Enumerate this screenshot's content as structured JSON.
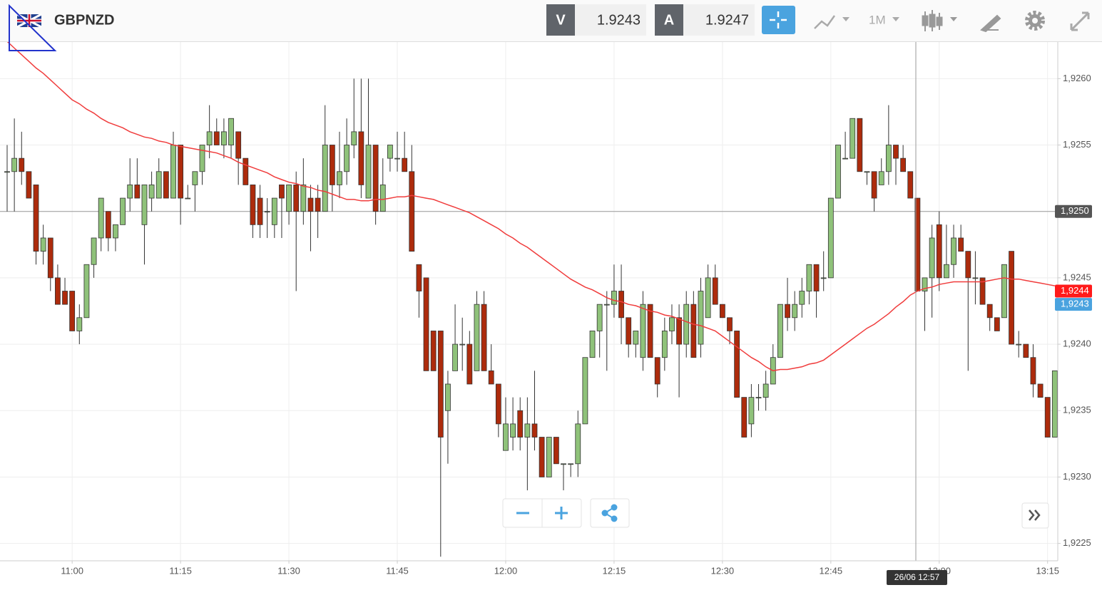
{
  "toolbar": {
    "bid_label": "V",
    "bid": 1.9243,
    "ask_label": "A",
    "ask": 1.9247,
    "interval": "1M"
  },
  "chart_data": {
    "type": "candlestick",
    "title": "GBPNZD",
    "categories": [
      null,
      null,
      null,
      null,
      null,
      null,
      null,
      null,
      null,
      "11:00",
      null,
      null,
      null,
      null,
      null,
      null,
      null,
      null,
      null,
      null,
      null,
      null,
      null,
      null,
      "11:15",
      null,
      null,
      null,
      null,
      null,
      null,
      null,
      null,
      null,
      null,
      null,
      null,
      null,
      null,
      "11:30",
      null,
      null,
      null,
      null,
      null,
      null,
      null,
      null,
      null,
      null,
      null,
      null,
      null,
      null,
      "11:45",
      null,
      null,
      null,
      null,
      null,
      null,
      null,
      null,
      null,
      null,
      null,
      null,
      null,
      null,
      "12:00",
      null,
      null,
      null,
      null,
      null,
      null,
      null,
      null,
      null,
      null,
      null,
      null,
      null,
      null,
      "12:15",
      null,
      null,
      null,
      null,
      null,
      null,
      null,
      null,
      null,
      null,
      null,
      null,
      null,
      null,
      "12:30",
      null,
      null,
      null,
      null,
      null,
      null,
      null,
      null,
      null,
      null,
      null,
      null,
      null,
      null,
      "12:45",
      null,
      null,
      null,
      null,
      null,
      null,
      null,
      null,
      null,
      null,
      null,
      null,
      null,
      null,
      "13:00",
      null,
      null,
      null,
      null,
      null,
      null,
      null,
      null,
      null,
      null,
      null,
      null,
      null,
      null,
      "13:15",
      null
    ],
    "open": [
      1.9253,
      1.9253,
      1.9254,
      1.9253,
      1.9252,
      1.9247,
      1.9248,
      1.9245,
      1.9244,
      1.9244,
      1.9241,
      1.9242,
      1.9246,
      1.9248,
      1.925,
      1.9248,
      1.9249,
      1.9251,
      1.9252,
      1.9249,
      1.9251,
      1.9251,
      1.9253,
      1.9251,
      1.9255,
      1.9251,
      1.9252,
      1.9253,
      1.9255,
      1.9256,
      1.9255,
      1.9255,
      1.9256,
      1.9254,
      1.9252,
      1.9251,
      1.925,
      1.9249,
      1.9252,
      1.925,
      1.9252,
      1.925,
      1.9251,
      1.9251,
      1.925,
      1.9255,
      1.9252,
      1.9253,
      1.9255,
      1.9256,
      1.9251,
      1.9255,
      1.925,
      1.9254,
      1.9254,
      1.9254,
      1.9253,
      1.9246,
      1.9245,
      1.9241,
      1.9241,
      1.9235,
      1.9238,
      1.924,
      1.924,
      1.9238,
      1.9243,
      1.9238,
      1.9237,
      1.9232,
      1.9233,
      1.9235,
      1.9233,
      1.9234,
      1.9233,
      1.923,
      1.9233,
      1.9231,
      1.9231,
      1.9231,
      1.9234,
      1.9239,
      1.9241,
      1.9243,
      1.9243,
      1.9244,
      1.9242,
      1.924,
      1.9239,
      1.9243,
      1.9239,
      1.9239,
      1.9241,
      1.9242,
      1.924,
      1.9243,
      1.924,
      1.9242,
      1.9245,
      1.9243,
      1.9242,
      1.9241,
      1.9236,
      1.9234,
      1.9236,
      1.9236,
      1.9237,
      1.9239,
      1.9243,
      1.9242,
      1.9243,
      1.9244,
      1.9246,
      1.9245,
      1.9245,
      1.9251,
      1.9254,
      1.9254,
      1.9257,
      1.9253,
      1.9253,
      1.9252,
      1.9253,
      1.9255,
      1.9254,
      1.9253,
      1.9251,
      1.9244,
      1.9245,
      1.9249,
      1.9245,
      1.9246,
      1.9248,
      1.9247,
      1.9245,
      1.9245,
      1.9243,
      1.9242,
      1.9242,
      1.9247,
      1.924,
      1.924,
      1.9239,
      1.9237,
      1.9236,
      1.9233
    ],
    "high": [
      1.9255,
      1.9257,
      1.9256,
      1.9253,
      1.9252,
      1.9249,
      1.9248,
      1.9246,
      1.9245,
      1.9244,
      1.9243,
      1.9246,
      1.9248,
      1.9251,
      1.925,
      1.9249,
      1.9251,
      1.9254,
      1.9254,
      1.9252,
      1.9253,
      1.9254,
      1.9253,
      1.9256,
      1.9255,
      1.9252,
      1.9253,
      1.9255,
      1.9258,
      1.9257,
      1.9257,
      1.9257,
      1.9256,
      1.9254,
      1.9252,
      1.9252,
      1.9251,
      1.9251,
      1.9252,
      1.9252,
      1.9253,
      1.9254,
      1.9252,
      1.9252,
      1.9258,
      1.9255,
      1.9256,
      1.9257,
      1.926,
      1.926,
      1.926,
      1.9255,
      1.9254,
      1.9255,
      1.9256,
      1.9256,
      1.9255,
      1.9246,
      1.9245,
      1.9241,
      1.9241,
      1.9238,
      1.9243,
      1.9242,
      1.9241,
      1.9244,
      1.9244,
      1.924,
      1.9237,
      1.9236,
      1.9236,
      1.9236,
      1.9236,
      1.9238,
      1.9233,
      1.9233,
      1.9233,
      1.9231,
      1.9231,
      1.9235,
      1.9239,
      1.9241,
      1.9243,
      1.9244,
      1.9246,
      1.9246,
      1.9242,
      1.9241,
      1.9244,
      1.9243,
      1.9239,
      1.9242,
      1.9243,
      1.9243,
      1.9244,
      1.9244,
      1.9245,
      1.9246,
      1.9246,
      1.9243,
      1.9242,
      1.9241,
      1.9236,
      1.9237,
      1.9237,
      1.9238,
      1.924,
      1.9243,
      1.9245,
      1.9244,
      1.9245,
      1.9246,
      1.9246,
      1.9247,
      1.9251,
      1.9255,
      1.9256,
      1.9257,
      1.9257,
      1.9253,
      1.9253,
      1.9254,
      1.9258,
      1.9255,
      1.9255,
      1.9253,
      1.9251,
      1.9245,
      1.9249,
      1.925,
      1.9249,
      1.9249,
      1.9249,
      1.9247,
      1.9247,
      1.9245,
      1.9243,
      1.9242,
      1.9246,
      1.9247,
      1.9241,
      1.924,
      1.924,
      1.9237,
      1.9236,
      1.9238
    ],
    "low": [
      1.925,
      1.925,
      1.9252,
      1.9251,
      1.9246,
      1.9246,
      1.9244,
      1.9243,
      1.9243,
      1.9241,
      1.924,
      1.9242,
      1.9245,
      1.9247,
      1.9247,
      1.9247,
      1.9249,
      1.925,
      1.9251,
      1.9246,
      1.925,
      1.9251,
      1.9251,
      1.9251,
      1.9249,
      1.9251,
      1.925,
      1.9252,
      1.9254,
      1.9255,
      1.9254,
      1.9254,
      1.9252,
      1.9252,
      1.9248,
      1.9248,
      1.9248,
      1.9248,
      1.9248,
      1.9249,
      1.9244,
      1.9249,
      1.9247,
      1.9248,
      1.925,
      1.925,
      1.9251,
      1.9252,
      1.9254,
      1.9251,
      1.9251,
      1.9249,
      1.925,
      1.9253,
      1.9253,
      1.9253,
      1.9247,
      1.9242,
      1.9238,
      1.9238,
      1.9224,
      1.9231,
      1.9238,
      1.9238,
      1.9237,
      1.9238,
      1.9238,
      1.9237,
      1.9233,
      1.9232,
      1.9232,
      1.9232,
      1.9229,
      1.9232,
      1.923,
      1.923,
      1.9231,
      1.9229,
      1.923,
      1.923,
      1.9234,
      1.9239,
      1.9239,
      1.9238,
      1.9242,
      1.924,
      1.9239,
      1.9239,
      1.9238,
      1.9239,
      1.9236,
      1.9238,
      1.924,
      1.9236,
      1.9239,
      1.9239,
      1.9239,
      1.9242,
      1.9243,
      1.9242,
      1.924,
      1.9236,
      1.9233,
      1.9233,
      1.9235,
      1.9235,
      1.9237,
      1.9239,
      1.9241,
      1.9241,
      1.9242,
      1.9243,
      1.9242,
      1.9244,
      1.9245,
      1.9251,
      1.9254,
      1.9254,
      1.9253,
      1.9252,
      1.925,
      1.9252,
      1.9252,
      1.9252,
      1.9253,
      1.9251,
      1.9244,
      1.9241,
      1.9242,
      1.9244,
      1.9245,
      1.9245,
      1.9247,
      1.9238,
      1.9243,
      1.9243,
      1.9241,
      1.9241,
      1.9242,
      1.924,
      1.9239,
      1.9239,
      1.9236,
      1.9236,
      1.9233,
      1.9233
    ],
    "close": [
      1.9253,
      1.9254,
      1.9253,
      1.9251,
      1.9247,
      1.9248,
      1.9245,
      1.9243,
      1.9243,
      1.9241,
      1.9242,
      1.9246,
      1.9248,
      1.9251,
      1.9248,
      1.9249,
      1.9251,
      1.9252,
      1.9251,
      1.9252,
      1.9252,
      1.9253,
      1.9251,
      1.9255,
      1.9251,
      1.9251,
      1.9253,
      1.9255,
      1.9256,
      1.9255,
      1.9256,
      1.9257,
      1.9254,
      1.9252,
      1.9249,
      1.9249,
      1.925,
      1.9251,
      1.9251,
      1.9252,
      1.925,
      1.9252,
      1.925,
      1.925,
      1.9255,
      1.9252,
      1.9253,
      1.9255,
      1.9256,
      1.9252,
      1.9255,
      1.925,
      1.9252,
      1.9255,
      1.9254,
      1.9253,
      1.9247,
      1.9244,
      1.9238,
      1.9238,
      1.9233,
      1.9237,
      1.924,
      1.924,
      1.9237,
      1.9243,
      1.9238,
      1.9237,
      1.9234,
      1.9234,
      1.9234,
      1.9233,
      1.9234,
      1.9233,
      1.923,
      1.9233,
      1.9231,
      1.9231,
      1.9231,
      1.9234,
      1.9239,
      1.9241,
      1.9243,
      1.9243,
      1.9244,
      1.9242,
      1.924,
      1.9241,
      1.9243,
      1.9239,
      1.9237,
      1.9241,
      1.9242,
      1.924,
      1.9243,
      1.9239,
      1.9244,
      1.9245,
      1.9243,
      1.9242,
      1.9241,
      1.9236,
      1.9233,
      1.9236,
      1.9236,
      1.9237,
      1.9239,
      1.9243,
      1.9242,
      1.9243,
      1.9244,
      1.9246,
      1.9244,
      1.9245,
      1.9251,
      1.9255,
      1.9254,
      1.9257,
      1.9253,
      1.9253,
      1.9251,
      1.9253,
      1.9255,
      1.9254,
      1.9253,
      1.9251,
      1.9244,
      1.9245,
      1.9248,
      1.9245,
      1.9246,
      1.9248,
      1.9247,
      1.9245,
      1.9245,
      1.9243,
      1.9242,
      1.9241,
      1.9246,
      1.924,
      1.924,
      1.9239,
      1.9237,
      1.9236,
      1.9233,
      1.9238
    ],
    "up_color": "#8fc27a",
    "down_color": "#ad2b0c",
    "ma": {
      "color": "#f03c3c",
      "values": [
        1.92628,
        1.92623,
        1.92618,
        1.92613,
        1.92608,
        1.92604,
        1.92599,
        1.92594,
        1.92589,
        1.92584,
        1.92581,
        1.92577,
        1.92574,
        1.9257,
        1.92567,
        1.92565,
        1.92563,
        1.9256,
        1.92558,
        1.92556,
        1.92555,
        1.92553,
        1.92552,
        1.9255,
        1.92549,
        1.92548,
        1.92547,
        1.92546,
        1.92545,
        1.92544,
        1.92542,
        1.9254,
        1.92537,
        1.92535,
        1.92533,
        1.92531,
        1.92529,
        1.92526,
        1.92524,
        1.92522,
        1.92521,
        1.92519,
        1.92518,
        1.92516,
        1.92515,
        1.92513,
        1.92511,
        1.92509,
        1.92509,
        1.92508,
        1.92508,
        1.92509,
        1.92509,
        1.9251,
        1.92511,
        1.92511,
        1.92512,
        1.92511,
        1.9251,
        1.92509,
        1.92507,
        1.92505,
        1.92503,
        1.92501,
        1.92499,
        1.92496,
        1.92493,
        1.9249,
        1.92487,
        1.92483,
        1.9248,
        1.92476,
        1.92473,
        1.92469,
        1.92465,
        1.92461,
        1.92457,
        1.92453,
        1.92449,
        1.92446,
        1.92443,
        1.92441,
        1.92438,
        1.92435,
        1.92433,
        1.92432,
        1.9243,
        1.92429,
        1.92427,
        1.92425,
        1.92424,
        1.92422,
        1.92421,
        1.92419,
        1.92417,
        1.92415,
        1.92414,
        1.92412,
        1.9241,
        1.92406,
        1.92402,
        1.92398,
        1.92394,
        1.9239,
        1.92387,
        1.92383,
        1.9238,
        1.92381,
        1.92381,
        1.92382,
        1.92383,
        1.92385,
        1.92386,
        1.92388,
        1.92392,
        1.92396,
        1.924,
        1.92404,
        1.92408,
        1.92412,
        1.92415,
        1.92419,
        1.92423,
        1.92428,
        1.92432,
        1.92437,
        1.9244,
        1.92442,
        1.92443,
        1.92445,
        1.92446,
        1.92447,
        1.92447,
        1.92447,
        1.92447,
        1.92447,
        1.92448,
        1.92449,
        1.9245,
        1.92449,
        1.92449,
        1.92448,
        1.92447,
        1.92446,
        1.92445,
        1.92444
      ]
    },
    "ylim": [
      1.92238,
      1.92627
    ],
    "yticks": [
      {
        "value": 1.9225,
        "label": "1,9225"
      },
      {
        "value": 1.923,
        "label": "1,9230"
      },
      {
        "value": 1.9235,
        "label": "1,9235"
      },
      {
        "value": 1.924,
        "label": "1,9240"
      },
      {
        "value": 1.9245,
        "label": "1,9245"
      },
      {
        "value": 1.925,
        "label": "1,9250"
      },
      {
        "value": 1.9255,
        "label": "1,9255"
      },
      {
        "value": 1.926,
        "label": "1,9260"
      }
    ],
    "grid": true,
    "crosshair": {
      "time": "26/06 12:57",
      "price": {
        "value": 1.925,
        "label": "1,9250"
      },
      "color": "#555555"
    },
    "markers": [
      {
        "value": 1.9244,
        "label": "1,9244",
        "color": "#ff1a1a"
      },
      {
        "value": 1.9243,
        "label": "1,9243",
        "color": "#4aa3df"
      }
    ]
  }
}
